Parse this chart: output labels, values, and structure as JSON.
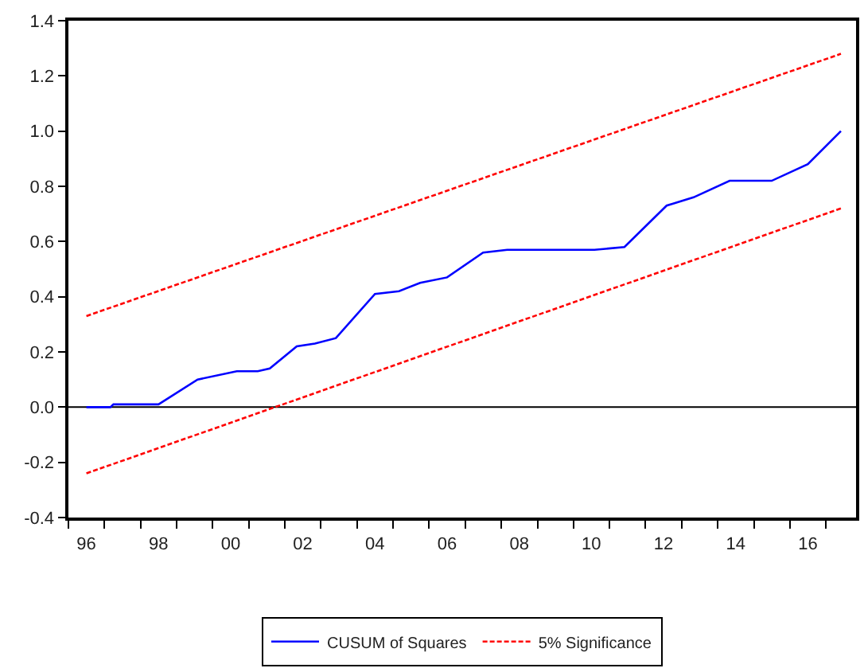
{
  "chart_data": {
    "type": "line",
    "series": [
      {
        "name": "CUSUM of Squares",
        "color": "#0000ff",
        "line_style": "solid",
        "x": [
          "1996-07",
          "1997-03",
          "1997-04",
          "1998-07",
          "1999-08",
          "2000-09",
          "2001-04",
          "2001-08",
          "2002-05",
          "2002-11",
          "2003-06",
          "2004-07",
          "2005-03",
          "2005-10",
          "2006-07",
          "2007-07",
          "2008-03",
          "2010-08",
          "2011-06",
          "2012-08",
          "2013-05",
          "2014-05",
          "2015-07",
          "2016-07",
          "2017-06"
        ],
        "values": [
          0.0,
          0.0,
          0.01,
          0.01,
          0.1,
          0.13,
          0.13,
          0.14,
          0.22,
          0.23,
          0.25,
          0.41,
          0.42,
          0.45,
          0.47,
          0.56,
          0.57,
          0.57,
          0.58,
          0.73,
          0.76,
          0.82,
          0.82,
          0.88,
          1.0
        ]
      },
      {
        "name": "5% Significance",
        "color": "#ff0000",
        "line_style": "dotted",
        "x": [
          "1996-07",
          "2017-06"
        ],
        "values": [
          0.33,
          1.28
        ]
      },
      {
        "color": "#ff0000",
        "line_style": "dotted",
        "x": [
          "1996-07",
          "2017-06"
        ],
        "values": [
          -0.24,
          0.72
        ]
      }
    ],
    "xlim": [
      "1996-01",
      "2017-11"
    ],
    "xticks": [
      {
        "value": "1996",
        "label": null
      },
      {
        "value": "1997",
        "label": null
      },
      {
        "value": "1998",
        "label": null
      },
      {
        "value": "1999",
        "label": null
      },
      {
        "value": "2000",
        "label": null
      },
      {
        "value": "2001",
        "label": null
      },
      {
        "value": "2002",
        "label": null
      },
      {
        "value": "2003",
        "label": null
      },
      {
        "value": "2004",
        "label": null
      },
      {
        "value": "2005",
        "label": null
      },
      {
        "value": "2006",
        "label": null
      },
      {
        "value": "2007",
        "label": null
      },
      {
        "value": "2008",
        "label": null
      },
      {
        "value": "2009",
        "label": null
      },
      {
        "value": "2010",
        "label": null
      },
      {
        "value": "2011",
        "label": null
      },
      {
        "value": "2012",
        "label": null
      },
      {
        "value": "2013",
        "label": null
      },
      {
        "value": "2014",
        "label": null
      },
      {
        "value": "2015",
        "label": null
      },
      {
        "value": "2016",
        "label": null
      },
      {
        "value": "2017",
        "label": null
      },
      {
        "value": "1996-07",
        "label": "96"
      },
      {
        "value": "1998-07",
        "label": "98"
      },
      {
        "value": "2000-07",
        "label": "00"
      },
      {
        "value": "2002-07",
        "label": "02"
      },
      {
        "value": "2004-07",
        "label": "04"
      },
      {
        "value": "2006-07",
        "label": "06"
      },
      {
        "value": "2008-07",
        "label": "08"
      },
      {
        "value": "2010-07",
        "label": "10"
      },
      {
        "value": "2012-07",
        "label": "12"
      },
      {
        "value": "2014-07",
        "label": "14"
      },
      {
        "value": "2016-07",
        "label": "16"
      }
    ],
    "ylim": [
      -0.4,
      1.4
    ],
    "yticks": [
      -0.4,
      -0.2,
      {
        "value": 0,
        "label": "0.0"
      },
      0.2,
      0.4,
      0.6,
      0.8,
      {
        "value": 1,
        "label": "1.0"
      },
      1.2,
      1.4
    ],
    "ref_lines": [
      {
        "axis": "y",
        "value": 0,
        "color": "#000000"
      }
    ],
    "grid": false,
    "legend": "bottom",
    "marker": "none"
  }
}
